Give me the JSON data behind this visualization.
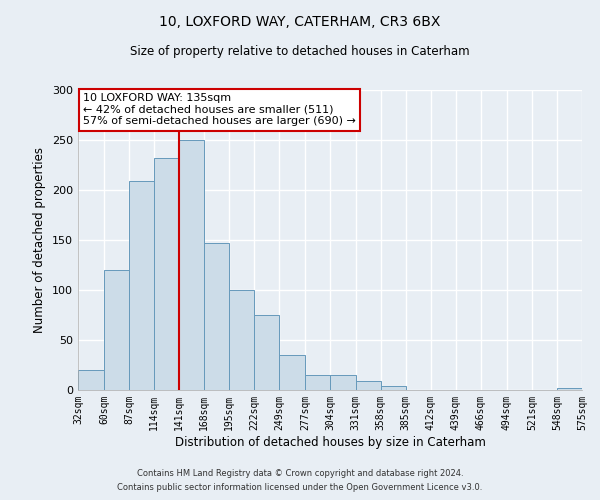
{
  "title": "10, LOXFORD WAY, CATERHAM, CR3 6BX",
  "subtitle": "Size of property relative to detached houses in Caterham",
  "xlabel": "Distribution of detached houses by size in Caterham",
  "ylabel": "Number of detached properties",
  "bar_color": "#ccdce8",
  "bar_edge_color": "#6699bb",
  "background_color": "#e8eef4",
  "plot_bg_color": "#e8eef4",
  "grid_color": "#ffffff",
  "bins": [
    32,
    60,
    87,
    114,
    141,
    168,
    195,
    222,
    249,
    277,
    304,
    331,
    358,
    385,
    412,
    439,
    466,
    494,
    521,
    548,
    575
  ],
  "counts": [
    20,
    120,
    209,
    232,
    250,
    147,
    100,
    75,
    35,
    15,
    15,
    9,
    4,
    0,
    0,
    0,
    0,
    0,
    0,
    2
  ],
  "tick_labels": [
    "32sqm",
    "60sqm",
    "87sqm",
    "114sqm",
    "141sqm",
    "168sqm",
    "195sqm",
    "222sqm",
    "249sqm",
    "277sqm",
    "304sqm",
    "331sqm",
    "358sqm",
    "385sqm",
    "412sqm",
    "439sqm",
    "466sqm",
    "494sqm",
    "521sqm",
    "548sqm",
    "575sqm"
  ],
  "property_line_x": 141,
  "annotation_title": "10 LOXFORD WAY: 135sqm",
  "annotation_line1": "← 42% of detached houses are smaller (511)",
  "annotation_line2": "57% of semi-detached houses are larger (690) →",
  "annotation_box_color": "#ffffff",
  "annotation_box_edge": "#cc0000",
  "vline_color": "#cc0000",
  "ylim": [
    0,
    300
  ],
  "yticks": [
    0,
    50,
    100,
    150,
    200,
    250,
    300
  ],
  "footer1": "Contains HM Land Registry data © Crown copyright and database right 2024.",
  "footer2": "Contains public sector information licensed under the Open Government Licence v3.0."
}
